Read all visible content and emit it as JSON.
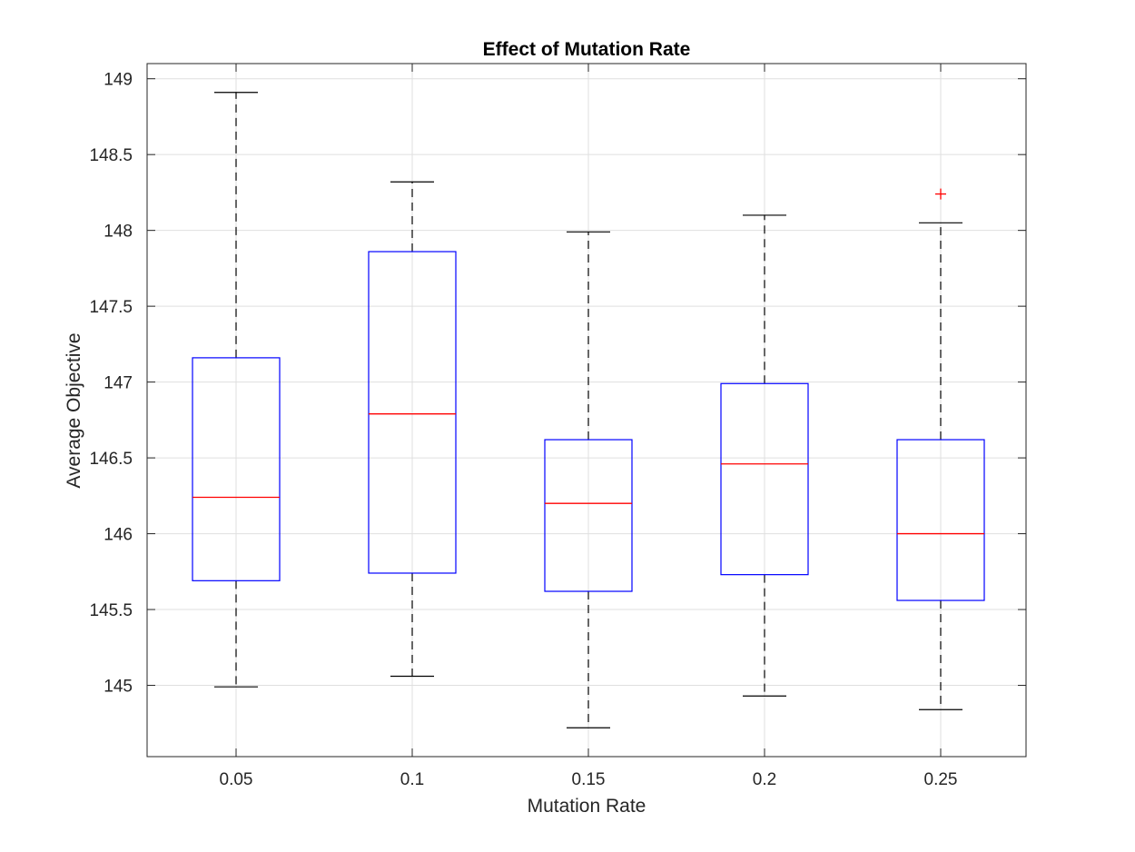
{
  "chart_data": {
    "type": "box",
    "title": "Effect of Mutation Rate",
    "xlabel": "Mutation Rate",
    "ylabel": "Average Objective",
    "categories": [
      "0.05",
      "0.1",
      "0.15",
      "0.2",
      "0.25"
    ],
    "ylim": [
      144.53,
      149.1
    ],
    "yticks": [
      145,
      145.5,
      146,
      146.5,
      147,
      147.5,
      148,
      148.5,
      149
    ],
    "ytick_labels": [
      "145",
      "145.5",
      "146",
      "146.5",
      "147",
      "147.5",
      "148",
      "148.5",
      "149"
    ],
    "grid": true,
    "boxes": [
      {
        "category": "0.05",
        "whisker_low": 144.99,
        "q1": 145.69,
        "median": 146.24,
        "q3": 147.16,
        "whisker_high": 148.91,
        "outliers": []
      },
      {
        "category": "0.1",
        "whisker_low": 145.06,
        "q1": 145.74,
        "median": 146.79,
        "q3": 147.86,
        "whisker_high": 148.32,
        "outliers": []
      },
      {
        "category": "0.15",
        "whisker_low": 144.72,
        "q1": 145.62,
        "median": 146.2,
        "q3": 146.62,
        "whisker_high": 147.99,
        "outliers": []
      },
      {
        "category": "0.2",
        "whisker_low": 144.93,
        "q1": 145.73,
        "median": 146.46,
        "q3": 146.99,
        "whisker_high": 148.1,
        "outliers": []
      },
      {
        "category": "0.25",
        "whisker_low": 144.84,
        "q1": 145.56,
        "median": 146.0,
        "q3": 146.62,
        "whisker_high": 148.05,
        "outliers": [
          148.24
        ]
      }
    ],
    "colors": {
      "box": "#0000ff",
      "median": "#ff0000",
      "whisker": "#000000",
      "outlier": "#ff0000",
      "grid": "#dfdfdf",
      "axis": "#262626"
    }
  }
}
